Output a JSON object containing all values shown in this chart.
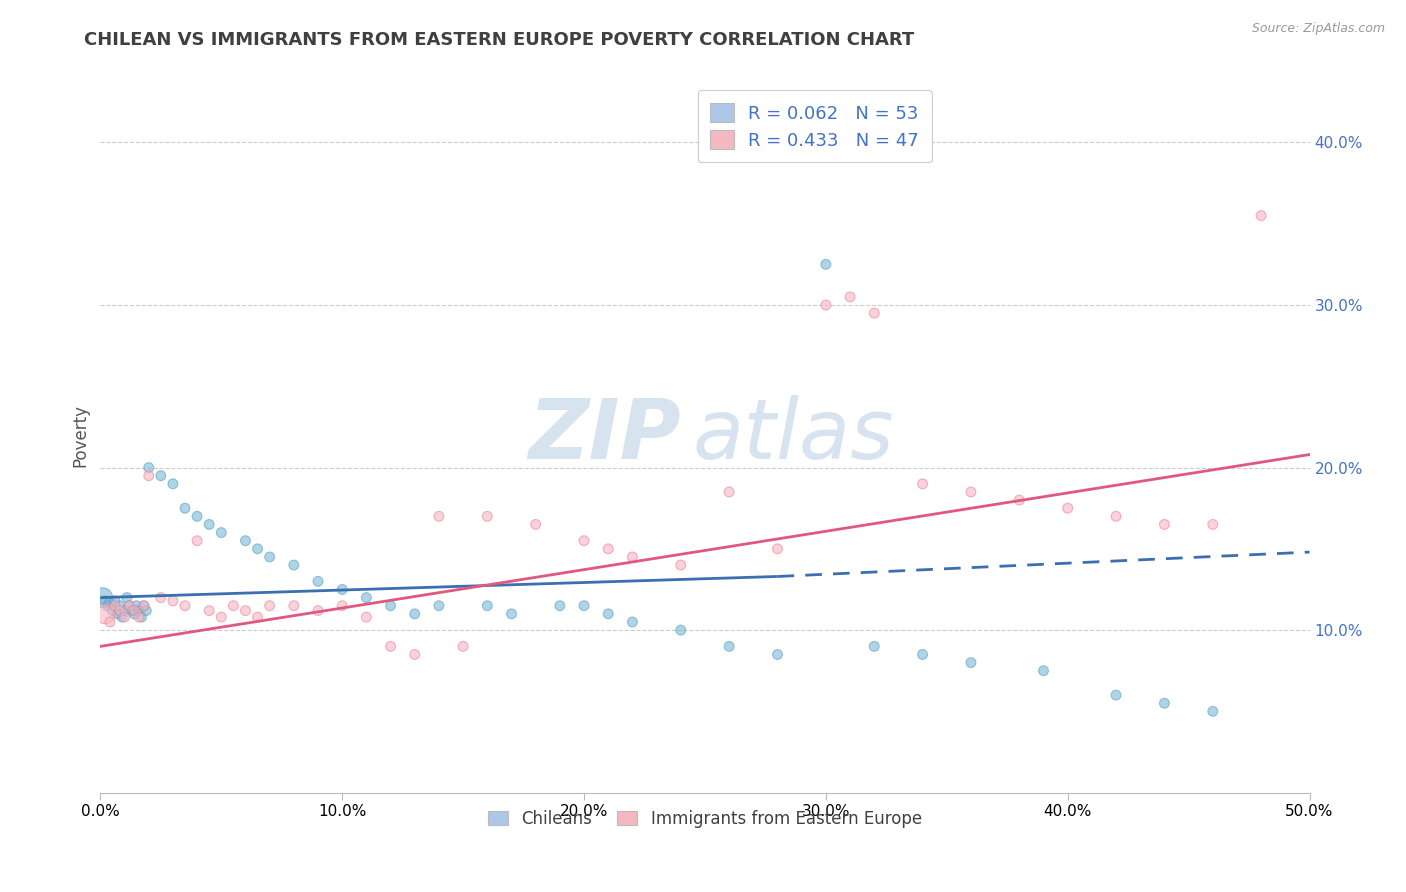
{
  "title": "CHILEAN VS IMMIGRANTS FROM EASTERN EUROPE POVERTY CORRELATION CHART",
  "source_text": "Source: ZipAtlas.com",
  "ylabel": "Poverty",
  "xlim": [
    0.0,
    0.5
  ],
  "ylim": [
    0.0,
    0.44
  ],
  "xticks": [
    0.0,
    0.1,
    0.2,
    0.3,
    0.4,
    0.5
  ],
  "yticks_right": [
    0.1,
    0.2,
    0.3,
    0.4
  ],
  "chileans": {
    "name": "Chileans",
    "R": 0.062,
    "N": 53,
    "color": "#7ab8d9",
    "edge_color": "#5a9fc0",
    "x": [
      0.001,
      0.002,
      0.003,
      0.004,
      0.005,
      0.006,
      0.007,
      0.008,
      0.009,
      0.01,
      0.011,
      0.012,
      0.013,
      0.014,
      0.015,
      0.016,
      0.017,
      0.018,
      0.019,
      0.02,
      0.025,
      0.03,
      0.035,
      0.04,
      0.045,
      0.05,
      0.06,
      0.065,
      0.07,
      0.08,
      0.09,
      0.1,
      0.11,
      0.12,
      0.13,
      0.14,
      0.16,
      0.17,
      0.19,
      0.2,
      0.21,
      0.22,
      0.24,
      0.26,
      0.28,
      0.3,
      0.32,
      0.34,
      0.36,
      0.39,
      0.42,
      0.44,
      0.46
    ],
    "y": [
      0.12,
      0.118,
      0.115,
      0.117,
      0.112,
      0.118,
      0.11,
      0.115,
      0.108,
      0.112,
      0.12,
      0.115,
      0.112,
      0.11,
      0.115,
      0.112,
      0.108,
      0.115,
      0.112,
      0.2,
      0.195,
      0.19,
      0.175,
      0.17,
      0.165,
      0.16,
      0.155,
      0.15,
      0.145,
      0.14,
      0.13,
      0.125,
      0.12,
      0.115,
      0.11,
      0.115,
      0.115,
      0.11,
      0.115,
      0.115,
      0.11,
      0.105,
      0.1,
      0.09,
      0.085,
      0.325,
      0.09,
      0.085,
      0.08,
      0.075,
      0.06,
      0.055,
      0.05
    ],
    "sizes": [
      200,
      50,
      50,
      50,
      50,
      50,
      50,
      50,
      50,
      50,
      50,
      50,
      50,
      50,
      50,
      50,
      50,
      50,
      50,
      50,
      50,
      50,
      50,
      50,
      50,
      50,
      50,
      50,
      50,
      50,
      50,
      50,
      50,
      50,
      50,
      50,
      50,
      50,
      50,
      50,
      50,
      50,
      50,
      50,
      50,
      50,
      50,
      50,
      50,
      50,
      50,
      50,
      50
    ]
  },
  "eastern_europe": {
    "name": "Immigrants from Eastern Europe",
    "R": 0.433,
    "N": 47,
    "color": "#f9b4c0",
    "edge_color": "#e8849a",
    "x": [
      0.002,
      0.004,
      0.006,
      0.008,
      0.01,
      0.012,
      0.014,
      0.016,
      0.018,
      0.02,
      0.025,
      0.03,
      0.035,
      0.04,
      0.045,
      0.05,
      0.055,
      0.06,
      0.065,
      0.07,
      0.08,
      0.09,
      0.1,
      0.11,
      0.12,
      0.13,
      0.14,
      0.15,
      0.16,
      0.18,
      0.2,
      0.21,
      0.22,
      0.24,
      0.26,
      0.28,
      0.3,
      0.31,
      0.32,
      0.34,
      0.36,
      0.38,
      0.4,
      0.42,
      0.44,
      0.46,
      0.48
    ],
    "y": [
      0.11,
      0.105,
      0.115,
      0.112,
      0.108,
      0.115,
      0.112,
      0.108,
      0.115,
      0.195,
      0.12,
      0.118,
      0.115,
      0.155,
      0.112,
      0.108,
      0.115,
      0.112,
      0.108,
      0.115,
      0.115,
      0.112,
      0.115,
      0.108,
      0.09,
      0.085,
      0.17,
      0.09,
      0.17,
      0.165,
      0.155,
      0.15,
      0.145,
      0.14,
      0.185,
      0.15,
      0.3,
      0.305,
      0.295,
      0.19,
      0.185,
      0.18,
      0.175,
      0.17,
      0.165,
      0.165,
      0.355
    ],
    "sizes": [
      200,
      50,
      50,
      50,
      50,
      50,
      50,
      50,
      50,
      50,
      50,
      50,
      50,
      50,
      50,
      50,
      50,
      50,
      50,
      50,
      50,
      50,
      50,
      50,
      50,
      50,
      50,
      50,
      50,
      50,
      50,
      50,
      50,
      50,
      50,
      50,
      50,
      50,
      50,
      50,
      50,
      50,
      50,
      50,
      50,
      50,
      50
    ]
  },
  "trendline_blue": {
    "x_start": 0.0,
    "x_solid_end": 0.28,
    "x_dash_end": 0.5,
    "y_start": 0.12,
    "y_solid_end": 0.133,
    "y_dash_end": 0.148,
    "color": "#3b6faf",
    "linewidth": 2.0
  },
  "trendline_pink": {
    "x_start": 0.0,
    "x_end": 0.5,
    "y_start": 0.09,
    "y_end": 0.208,
    "color": "#e05880",
    "linewidth": 2.0
  },
  "watermark_zip": "ZIP",
  "watermark_atlas": "atlas",
  "watermark_color": "#c8d8ea",
  "background_color": "#ffffff",
  "grid_color": "#cccccc",
  "title_color": "#404040",
  "title_fontsize": 13,
  "axis_label_color": "#555555",
  "legend_R_N_color": "#4472c4",
  "legend_box_color_blue": "#aec6e8",
  "legend_box_color_pink": "#f4b8c1"
}
